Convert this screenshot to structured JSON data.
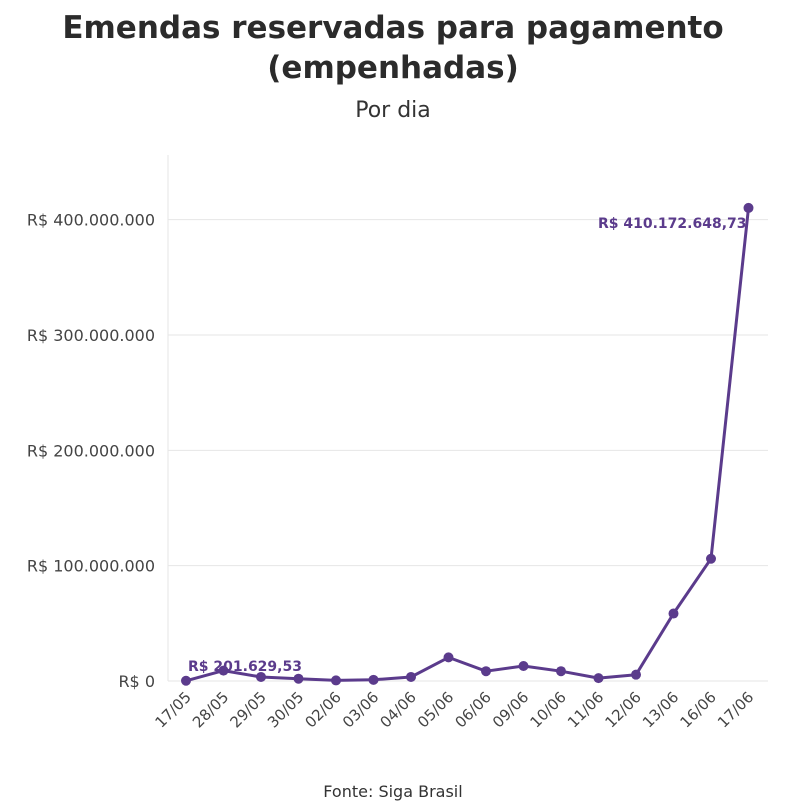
{
  "header": {
    "title_line1": "Emendas reservadas para pagamento",
    "title_line2": "(empenhadas)",
    "subtitle": "Por dia"
  },
  "footer": {
    "source": "Fonte: Siga Brasil"
  },
  "colors": {
    "line": "#5b3b8c",
    "grid": "#e6e6e6",
    "axis_text": "#444444"
  },
  "chart_data": {
    "type": "line",
    "title": "Emendas reservadas para pagamento (empenhadas)",
    "subtitle": "Por dia",
    "xlabel": "",
    "ylabel": "",
    "categories": [
      "17/05",
      "28/05",
      "29/05",
      "30/05",
      "02/06",
      "03/06",
      "04/06",
      "05/06",
      "06/06",
      "09/06",
      "10/06",
      "11/06",
      "12/06",
      "13/06",
      "16/06",
      "17/06"
    ],
    "series": [
      {
        "values": [
          201629.53,
          9000000,
          3500000,
          2000000,
          500000,
          1000000,
          3500000,
          20500000,
          8500000,
          13000000,
          8500000,
          2500000,
          5500000,
          58500000,
          106000000,
          410172648.73
        ]
      }
    ],
    "ylim": [
      0,
      450000000
    ],
    "yticks": [
      0,
      100000000,
      200000000,
      300000000,
      400000000
    ],
    "ytick_labels": [
      "R$ 0",
      "R$ 100.000.000",
      "R$ 200.000.000",
      "R$ 300.000.000",
      "R$ 400.000.000"
    ],
    "annotations": [
      {
        "index": 0,
        "text": "R$ 201.629,53"
      },
      {
        "index": 15,
        "text": "R$ 410.172.648,73"
      }
    ],
    "grid": true,
    "legend": "none"
  }
}
